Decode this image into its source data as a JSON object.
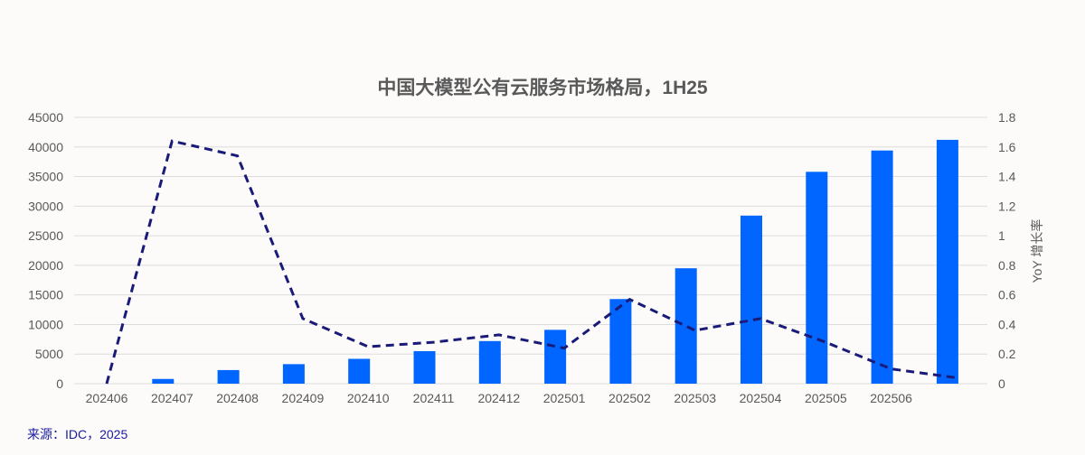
{
  "chart_data": {
    "type": "bar+line",
    "title": "中国大模型公有云服务市场格局，1H25",
    "categories": [
      "202406",
      "202407",
      "202408",
      "202409",
      "202410",
      "202411",
      "202412",
      "202501",
      "202502",
      "202503",
      "202504",
      "202505",
      "202506",
      ""
    ],
    "series": [
      {
        "type": "bar",
        "axis": "left",
        "color": "#0066ff",
        "values": [
          0,
          800,
          2300,
          3300,
          4200,
          5500,
          7200,
          9100,
          14300,
          19500,
          28400,
          35800,
          39400,
          41200
        ]
      },
      {
        "type": "line",
        "axis": "right",
        "color": "#1a1a78",
        "dash": true,
        "values": [
          0,
          1.64,
          1.54,
          0.44,
          0.25,
          0.28,
          0.33,
          0.24,
          0.57,
          0.36,
          0.44,
          0.28,
          0.1,
          0.04
        ]
      }
    ],
    "y_left": {
      "range": [
        0,
        45000
      ],
      "ticks": [
        0,
        5000,
        10000,
        15000,
        20000,
        25000,
        30000,
        35000,
        40000,
        45000
      ],
      "label": ""
    },
    "y_right": {
      "range": [
        0,
        1.8
      ],
      "ticks": [
        "0",
        "0.2",
        "0.4",
        "0.6",
        "0.8",
        "1",
        "1.2",
        "1.4",
        "1.6",
        "1.8"
      ],
      "label": "YoY 增长率"
    },
    "grid": true,
    "legend": "none"
  },
  "source": "来源：IDC，2025"
}
